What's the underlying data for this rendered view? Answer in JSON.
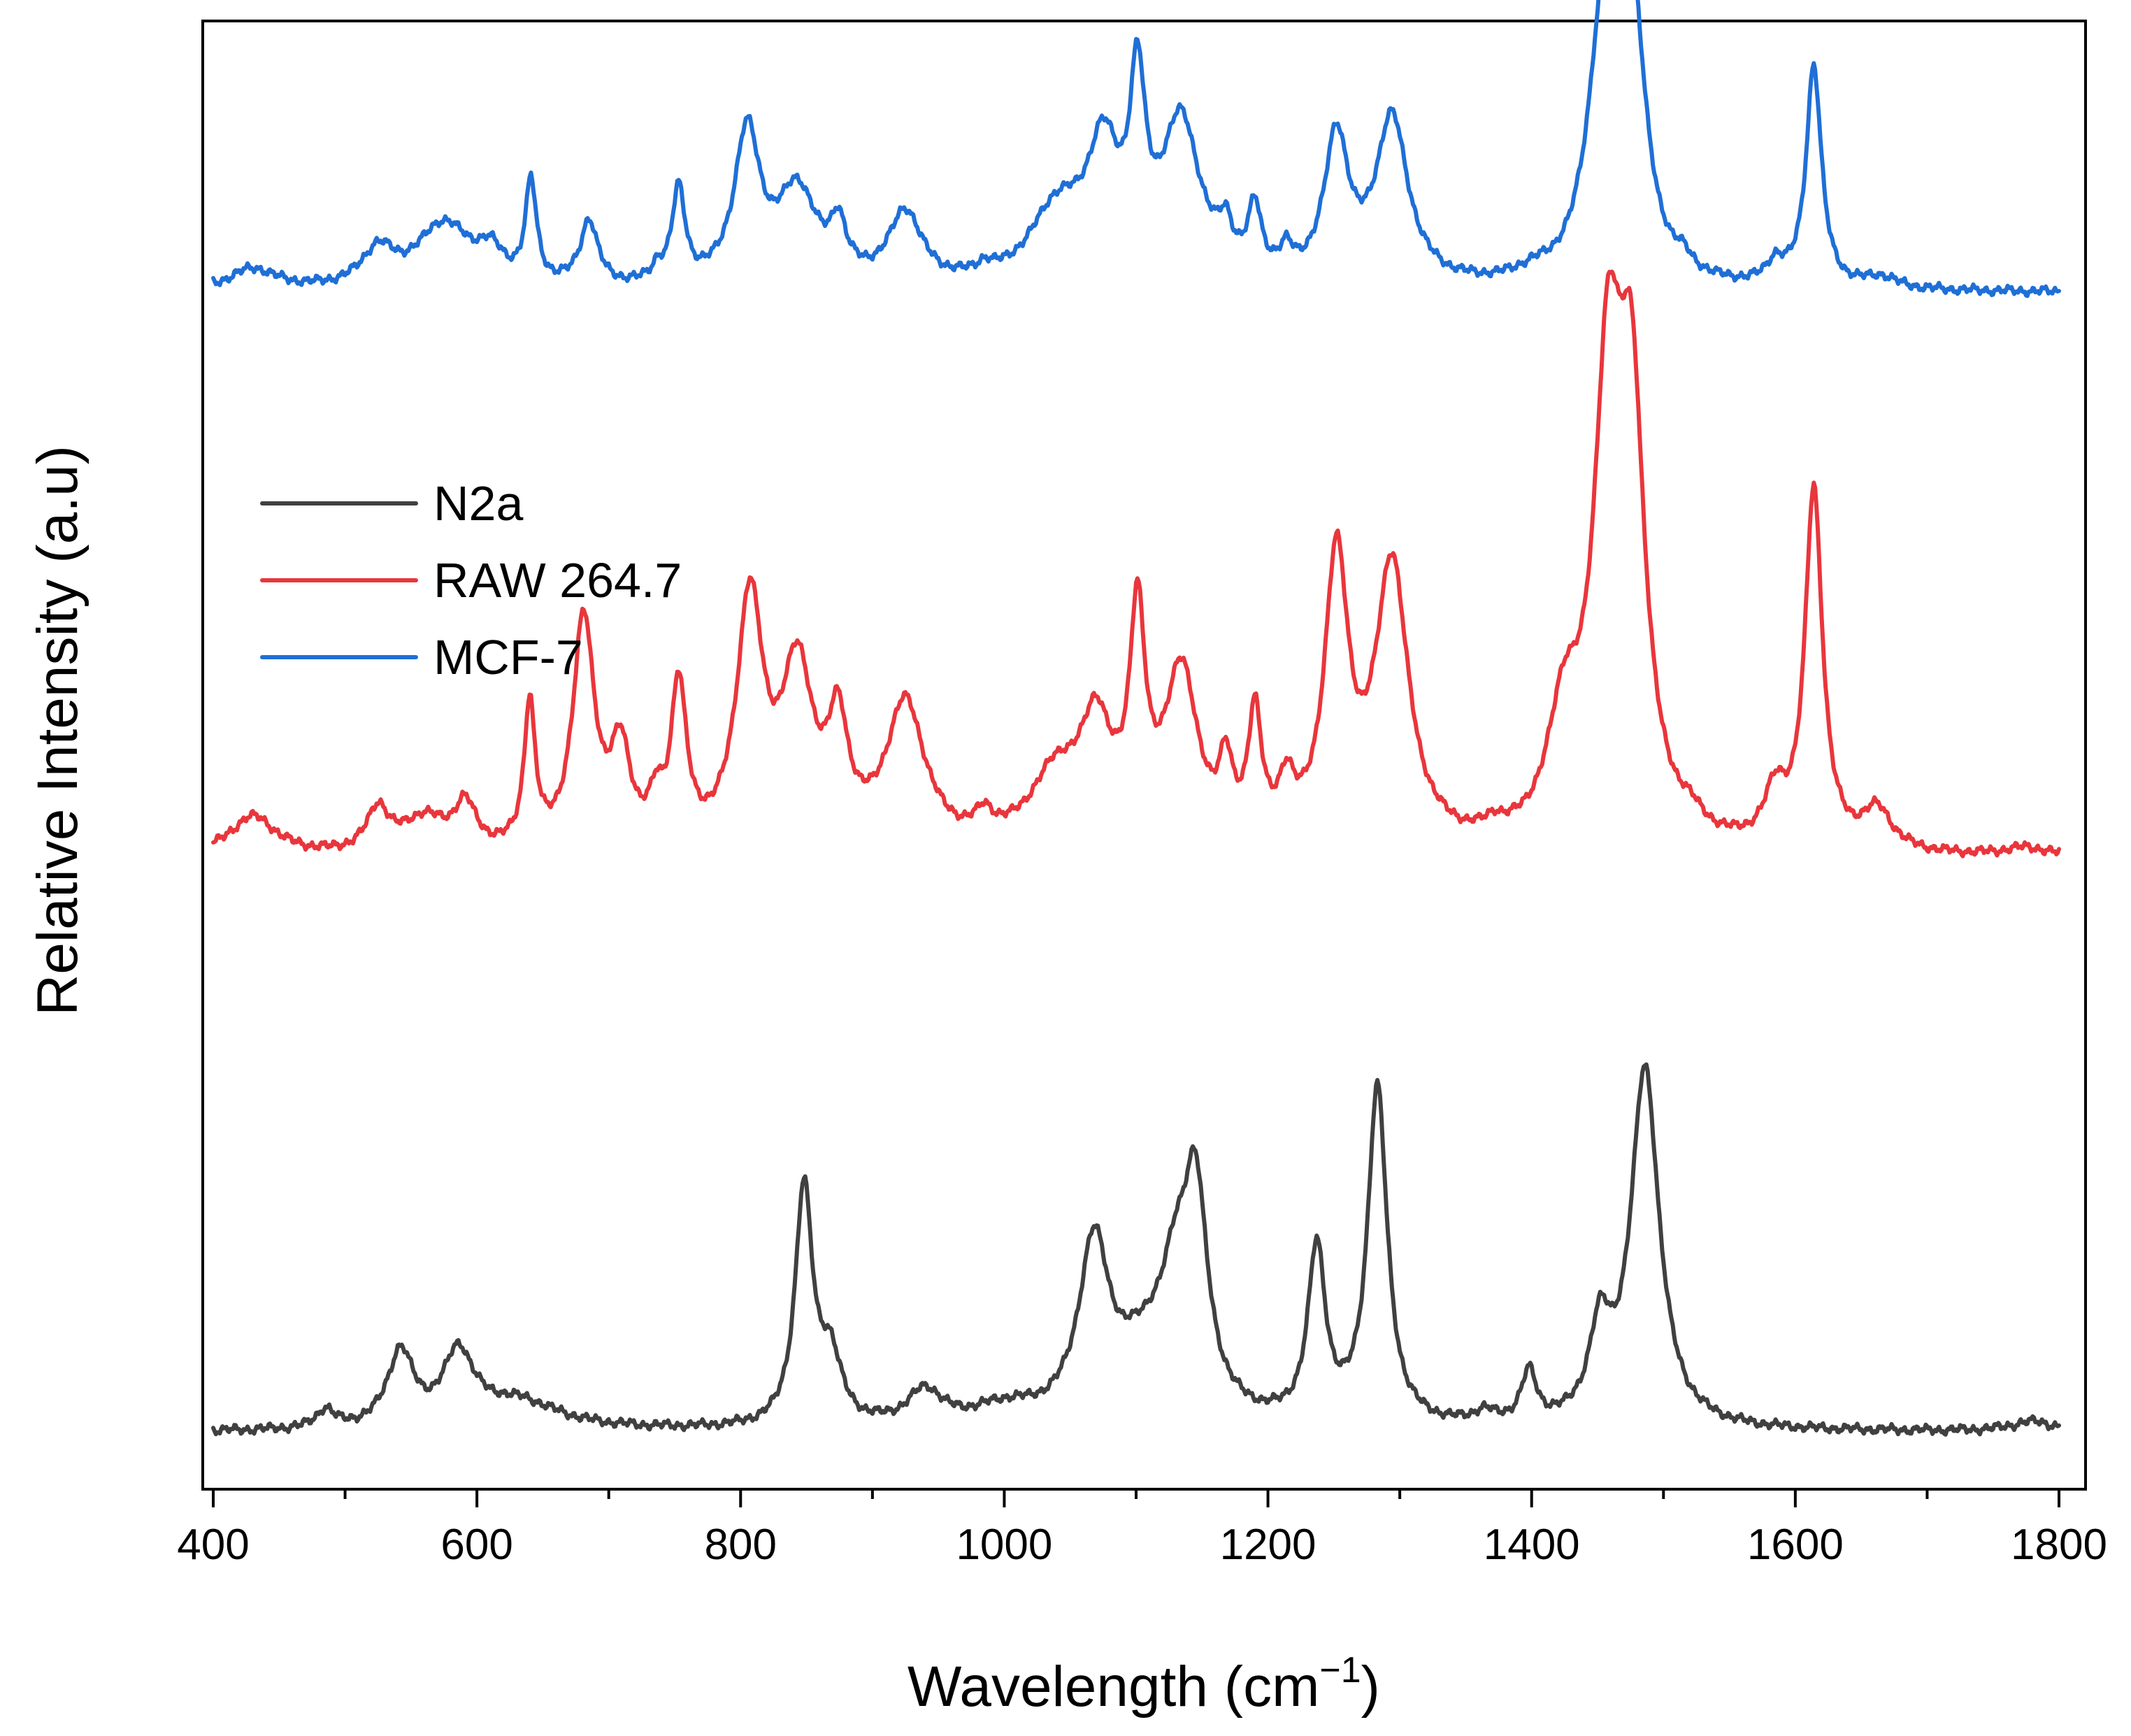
{
  "chart_data": {
    "type": "line",
    "title": "",
    "xlabel": "Wavelength (cm",
    "xlabel_sup": "−1",
    "xlabel_end": ")",
    "ylabel": "Relative Intensity (a.u)",
    "xlim": [
      400,
      1800
    ],
    "ylim": [
      0,
      100
    ],
    "x_ticks": [
      400,
      600,
      800,
      1000,
      1200,
      1400,
      1600,
      1800
    ],
    "x_tick_labels": [
      "400",
      "600",
      "800",
      "1000",
      "1200",
      "1400",
      "1600",
      "1800"
    ],
    "y_ticks_visible": false,
    "grid": false,
    "stacked_offset": true,
    "legend": {
      "position": "upper-left",
      "entries": [
        "N2a",
        "RAW 264.7",
        "MCF-7"
      ]
    },
    "series": [
      {
        "name": "N2a",
        "color": "#404040",
        "baseline": 2,
        "peaks": [
          {
            "x": 485,
            "h": 1.3,
            "w": 8
          },
          {
            "x": 542,
            "h": 5.2,
            "w": 12
          },
          {
            "x": 586,
            "h": 4.9,
            "w": 14
          },
          {
            "x": 630,
            "h": 2.0,
            "w": 40
          },
          {
            "x": 848,
            "h": 16.5,
            "w": 8
          },
          {
            "x": 868,
            "h": 4.5,
            "w": 10
          },
          {
            "x": 940,
            "h": 2.4,
            "w": 16
          },
          {
            "x": 1000,
            "h": 1.2,
            "w": 30
          },
          {
            "x": 1068,
            "h": 11.8,
            "w": 14
          },
          {
            "x": 1110,
            "h": 5.0,
            "w": 30
          },
          {
            "x": 1130,
            "h": 6.0,
            "w": 12
          },
          {
            "x": 1145,
            "h": 14.5,
            "w": 11
          },
          {
            "x": 1237,
            "h": 12.0,
            "w": 8
          },
          {
            "x": 1283,
            "h": 23.5,
            "w": 9
          },
          {
            "x": 1364,
            "h": 0.8,
            "w": 10
          },
          {
            "x": 1398,
            "h": 3.5,
            "w": 7
          },
          {
            "x": 1452,
            "h": 6.0,
            "w": 10
          },
          {
            "x": 1486,
            "h": 25.0,
            "w": 13
          },
          {
            "x": 1780,
            "h": 0.7,
            "w": 20
          }
        ]
      },
      {
        "name": "RAW 264.7",
        "color": "#e8363c",
        "baseline": 42,
        "peaks": [
          {
            "x": 430,
            "h": 2.8,
            "w": 22
          },
          {
            "x": 525,
            "h": 3.0,
            "w": 10
          },
          {
            "x": 560,
            "h": 2.4,
            "w": 20
          },
          {
            "x": 591,
            "h": 3.1,
            "w": 10
          },
          {
            "x": 640,
            "h": 10.0,
            "w": 5
          },
          {
            "x": 681,
            "h": 16.0,
            "w": 10
          },
          {
            "x": 709,
            "h": 6.5,
            "w": 9
          },
          {
            "x": 736,
            "h": 2.5,
            "w": 6
          },
          {
            "x": 753,
            "h": 11.0,
            "w": 7
          },
          {
            "x": 807,
            "h": 17.0,
            "w": 12
          },
          {
            "x": 843,
            "h": 12.0,
            "w": 15
          },
          {
            "x": 874,
            "h": 7.5,
            "w": 9
          },
          {
            "x": 925,
            "h": 10.0,
            "w": 18
          },
          {
            "x": 985,
            "h": 1.5,
            "w": 8
          },
          {
            "x": 1040,
            "h": 5.0,
            "w": 25
          },
          {
            "x": 1070,
            "h": 7.5,
            "w": 14
          },
          {
            "x": 1101,
            "h": 15.0,
            "w": 7
          },
          {
            "x": 1134,
            "h": 12.0,
            "w": 15
          },
          {
            "x": 1168,
            "h": 4.5,
            "w": 6
          },
          {
            "x": 1190,
            "h": 8.5,
            "w": 6
          },
          {
            "x": 1214,
            "h": 3.5,
            "w": 7
          },
          {
            "x": 1252,
            "h": 19.5,
            "w": 11
          },
          {
            "x": 1294,
            "h": 19.5,
            "w": 15
          },
          {
            "x": 1372,
            "h": 0.8,
            "w": 8
          },
          {
            "x": 1425,
            "h": 8.0,
            "w": 15
          },
          {
            "x": 1458,
            "h": 30.5,
            "w": 13
          },
          {
            "x": 1476,
            "h": 27.0,
            "w": 12
          },
          {
            "x": 1520,
            "h": 1.0,
            "w": 12
          },
          {
            "x": 1585,
            "h": 3.5,
            "w": 10
          },
          {
            "x": 1614,
            "h": 25.0,
            "w": 8
          },
          {
            "x": 1662,
            "h": 2.8,
            "w": 14
          },
          {
            "x": 1775,
            "h": 0.6,
            "w": 20
          }
        ]
      },
      {
        "name": "MCF-7",
        "color": "#1f6fd6",
        "baseline": 81.5,
        "peaks": [
          {
            "x": 430,
            "h": 1.5,
            "w": 22
          },
          {
            "x": 525,
            "h": 2.5,
            "w": 15
          },
          {
            "x": 575,
            "h": 4.5,
            "w": 25
          },
          {
            "x": 610,
            "h": 2.0,
            "w": 12
          },
          {
            "x": 641,
            "h": 7.0,
            "w": 5
          },
          {
            "x": 685,
            "h": 4.5,
            "w": 8
          },
          {
            "x": 737,
            "h": 1.0,
            "w": 5
          },
          {
            "x": 753,
            "h": 6.5,
            "w": 6
          },
          {
            "x": 805,
            "h": 10.5,
            "w": 12
          },
          {
            "x": 843,
            "h": 6.5,
            "w": 18
          },
          {
            "x": 874,
            "h": 3.5,
            "w": 7
          },
          {
            "x": 925,
            "h": 5.0,
            "w": 15
          },
          {
            "x": 985,
            "h": 0.7,
            "w": 7
          },
          {
            "x": 1040,
            "h": 5.0,
            "w": 25
          },
          {
            "x": 1075,
            "h": 8.5,
            "w": 15
          },
          {
            "x": 1101,
            "h": 12.0,
            "w": 7
          },
          {
            "x": 1134,
            "h": 11.0,
            "w": 18
          },
          {
            "x": 1168,
            "h": 2.5,
            "w": 6
          },
          {
            "x": 1190,
            "h": 4.5,
            "w": 6
          },
          {
            "x": 1214,
            "h": 1.5,
            "w": 6
          },
          {
            "x": 1252,
            "h": 10.0,
            "w": 11
          },
          {
            "x": 1294,
            "h": 11.5,
            "w": 15
          },
          {
            "x": 1400,
            "h": 0.5,
            "w": 15
          },
          {
            "x": 1455,
            "h": 18.5,
            "w": 14
          },
          {
            "x": 1476,
            "h": 18.0,
            "w": 12
          },
          {
            "x": 1515,
            "h": 0.8,
            "w": 8
          },
          {
            "x": 1585,
            "h": 1.5,
            "w": 8
          },
          {
            "x": 1614,
            "h": 15.5,
            "w": 7
          },
          {
            "x": 1665,
            "h": 0.8,
            "w": 15
          }
        ]
      }
    ]
  }
}
